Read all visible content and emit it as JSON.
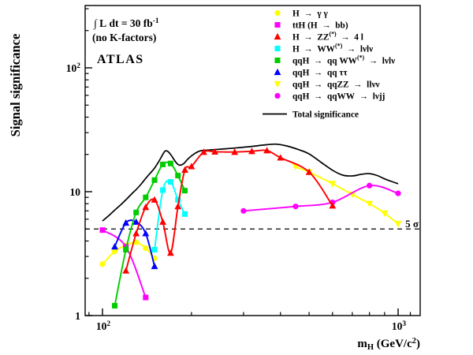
{
  "annotations": {
    "lumi": "∫ L dt = 30 fb^[-1]",
    "kfactor": "(no K-factors)",
    "experiment": "ATLAS"
  },
  "axes": {
    "x": {
      "label": "m_[H] (GeV/c^[2])",
      "scale": "log",
      "range": [
        87,
        1190
      ],
      "ticks": [
        {
          "label": "10^[2]",
          "value": 100
        },
        {
          "label": "10^[3]",
          "value": 1000
        }
      ],
      "minor_ticks": [
        90,
        200,
        300,
        400,
        500,
        600,
        700,
        800,
        900,
        1100
      ]
    },
    "y": {
      "label": "Signal significance",
      "scale": "log",
      "range": [
        1,
        320
      ],
      "ticks": [
        {
          "label": "1",
          "value": 1
        },
        {
          "label": "10",
          "value": 10
        },
        {
          "label": "10^[2]",
          "value": 100
        }
      ],
      "minor_ticks": [
        2,
        3,
        4,
        5,
        6,
        7,
        8,
        9,
        20,
        30,
        40,
        50,
        60,
        70,
        80,
        90,
        200,
        300
      ]
    }
  },
  "five_sigma": {
    "label": "5 σ",
    "value": 5
  },
  "chart_data": {
    "type": "line",
    "title": "",
    "xlabel": "m_H (GeV/c^2)",
    "ylabel": "Signal significance",
    "xscale": "log",
    "yscale": "log",
    "xlim": [
      87,
      1190
    ],
    "ylim": [
      1,
      320
    ],
    "legend_position": "top-right",
    "grid": false,
    "series": [
      {
        "name": "H  →  γ γ",
        "color": "#ffff00",
        "marker": "circle",
        "points": [
          [
            100,
            2.6
          ],
          [
            110,
            3.3
          ],
          [
            120,
            3.7
          ],
          [
            130,
            3.9
          ],
          [
            140,
            3.5
          ],
          [
            150,
            2.9
          ]
        ]
      },
      {
        "name": "ttH (H  →  bb)",
        "color": "#ff00ff",
        "marker": "square",
        "points": [
          [
            100,
            4.9
          ],
          [
            120,
            3.6
          ],
          [
            140,
            1.4
          ]
        ]
      },
      {
        "name": "H  →  ZZ^[(*)]  →  4 l",
        "color": "#ff0000",
        "marker": "triangle-up",
        "points": [
          [
            120,
            2.3
          ],
          [
            130,
            4.6
          ],
          [
            140,
            7.5
          ],
          [
            150,
            8.6
          ],
          [
            160,
            5.7
          ],
          [
            170,
            3.2
          ],
          [
            180,
            7.6
          ],
          [
            190,
            15
          ],
          [
            200,
            16
          ],
          [
            220,
            20.9
          ],
          [
            240,
            21
          ],
          [
            280,
            20.9
          ],
          [
            320,
            21.2
          ],
          [
            360,
            21.5
          ],
          [
            400,
            18.8
          ],
          [
            500,
            14.4
          ],
          [
            600,
            7.7
          ]
        ]
      },
      {
        "name": "H  →  WW^[(*)]  →  lνlν",
        "color": "#00ffff",
        "marker": "square",
        "points": [
          [
            150,
            3.4
          ],
          [
            160,
            10.3
          ],
          [
            170,
            12.0
          ],
          [
            180,
            8.6
          ],
          [
            190,
            6.6
          ]
        ]
      },
      {
        "name": "qqH  →  qq WW^[(*)]  →  lνlν",
        "color": "#00cc00",
        "marker": "square",
        "points": [
          [
            110,
            1.2
          ],
          [
            120,
            3.4
          ],
          [
            130,
            6.8
          ],
          [
            140,
            9.0
          ],
          [
            150,
            12.4
          ],
          [
            160,
            16.6
          ],
          [
            170,
            16.9
          ],
          [
            180,
            13.5
          ],
          [
            190,
            10.2
          ]
        ]
      },
      {
        "name": "qqH  →  qq ττ",
        "color": "#0000ff",
        "marker": "triangle-up",
        "points": [
          [
            110,
            3.6
          ],
          [
            120,
            5.6
          ],
          [
            130,
            5.7
          ],
          [
            140,
            4.6
          ],
          [
            150,
            2.5
          ]
        ]
      },
      {
        "name": "qqH  →  qqZZ  →  llνν",
        "color": "#ffff00",
        "marker": "triangle-down",
        "points": [
          [
            450,
            15.9
          ],
          [
            500,
            14.4
          ],
          [
            600,
            11.6
          ],
          [
            700,
            9.5
          ],
          [
            800,
            8.0
          ],
          [
            900,
            6.7
          ],
          [
            1000,
            5.5
          ]
        ]
      },
      {
        "name": "qqH  →  qqWW  →  lνjj",
        "color": "#ff00ff",
        "marker": "circle",
        "points": [
          [
            300,
            7.0
          ],
          [
            450,
            7.6
          ],
          [
            600,
            8.2
          ],
          [
            800,
            11.2
          ],
          [
            1000,
            9.7
          ]
        ]
      },
      {
        "name": "Total significance",
        "color": "#000000",
        "marker": "line",
        "points": [
          [
            100,
            5.8
          ],
          [
            105,
            6.4
          ],
          [
            110,
            7.1
          ],
          [
            115,
            7.8
          ],
          [
            120,
            8.6
          ],
          [
            125,
            9.5
          ],
          [
            130,
            10.4
          ],
          [
            135,
            11.5
          ],
          [
            140,
            12.8
          ],
          [
            145,
            14.1
          ],
          [
            150,
            15.5
          ],
          [
            155,
            17.5
          ],
          [
            160,
            20.0
          ],
          [
            163,
            21.3
          ],
          [
            167,
            21.0
          ],
          [
            172,
            19.2
          ],
          [
            177,
            17.3
          ],
          [
            182,
            16.4
          ],
          [
            188,
            16.8
          ],
          [
            195,
            18.5
          ],
          [
            205,
            20.3
          ],
          [
            215,
            21.4
          ],
          [
            235,
            21.8
          ],
          [
            260,
            22.2
          ],
          [
            290,
            22.7
          ],
          [
            320,
            23.2
          ],
          [
            350,
            23.8
          ],
          [
            385,
            24.2
          ],
          [
            420,
            23.4
          ],
          [
            460,
            21.9
          ],
          [
            500,
            20.2
          ],
          [
            550,
            17.2
          ],
          [
            600,
            14.9
          ],
          [
            650,
            13.6
          ],
          [
            700,
            13.4
          ],
          [
            750,
            13.8
          ],
          [
            800,
            14.0
          ],
          [
            850,
            13.5
          ],
          [
            900,
            12.7
          ],
          [
            950,
            12.1
          ],
          [
            1000,
            11.6
          ]
        ]
      }
    ]
  }
}
